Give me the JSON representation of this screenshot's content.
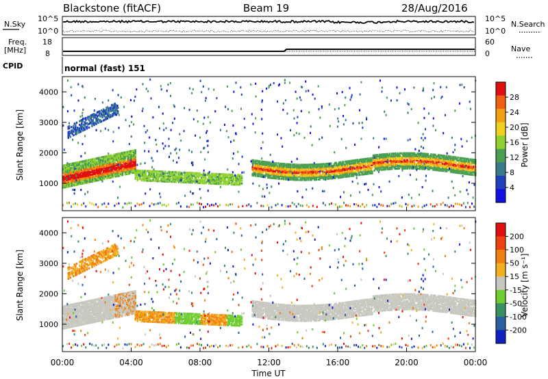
{
  "header": {
    "station": "Blackstone (fitACF)",
    "beam": "Beam 19",
    "date": "28/Aug/2016"
  },
  "summary": {
    "nsky_label": "N.Sky",
    "nsearch_label": "N.Search",
    "noise_ticks": [
      "10^5",
      "10^0"
    ],
    "freq_label_1": "Freq.",
    "freq_label_2": "[MHz]",
    "freq_ticks": [
      "18",
      "8"
    ],
    "nave_label": "Nave",
    "nave_ticks": [
      "60",
      "0"
    ],
    "cpid_label": "CPID",
    "cpid_value": "normal (fast) 151"
  },
  "chart_data": [
    {
      "type": "heatmap",
      "name": "power-panel",
      "ylabel": "Slant Range [km]",
      "xlabel": "",
      "x_ticks": [
        "00:00",
        "04:00",
        "08:00",
        "12:00",
        "16:00",
        "20:00",
        "00:00"
      ],
      "y_ticks": [
        1000,
        2000,
        3000,
        4000
      ],
      "ylim": [
        100,
        4500
      ],
      "xlim_hours": [
        0,
        24
      ],
      "colorbar": {
        "label": "Power [dB]",
        "ticks": [
          4,
          8,
          12,
          16,
          20,
          24,
          28
        ],
        "colors": [
          "#1010e0",
          "#2040c0",
          "#3a7a8a",
          "#4aa050",
          "#90d030",
          "#f0d020",
          "#f0a010",
          "#f06010",
          "#e01010"
        ]
      },
      "features": [
        {
          "region": "main band 00-04h",
          "range_km": [
            1000,
            1700
          ],
          "peak_power_db": 28
        },
        {
          "region": "band 04-10.5h",
          "range_km": [
            1000,
            1500
          ],
          "peak_power_db": 16
        },
        {
          "region": "band 11-24h",
          "range_km": [
            1200,
            1800
          ],
          "peak_power_db": 26
        },
        {
          "region": "high-range streak 00-03h",
          "range_km": [
            2500,
            3500
          ],
          "peak_power_db": 10
        }
      ]
    },
    {
      "type": "heatmap",
      "name": "velocity-panel",
      "ylabel": "Slant Range [km]",
      "xlabel": "Time UT",
      "x_ticks": [
        "00:00",
        "04:00",
        "08:00",
        "12:00",
        "16:00",
        "20:00",
        "00:00"
      ],
      "y_ticks": [
        1000,
        2000,
        3000,
        4000
      ],
      "ylim": [
        100,
        4500
      ],
      "xlim_hours": [
        0,
        24
      ],
      "colorbar": {
        "label": "Velocity [m s⁻¹]",
        "ticks": [
          "200",
          "100",
          "50",
          "15",
          "-15",
          "-50",
          "-100",
          "-200"
        ],
        "colors": [
          "#1020c0",
          "#2a60a0",
          "#3a9060",
          "#70cc30",
          "#c8c8c0",
          "#f0b020",
          "#f08010",
          "#f04010",
          "#e01010"
        ]
      },
      "features": [
        {
          "region": "ground scatter 00-04h",
          "range_km": [
            1000,
            1700
          ],
          "velocity": "±15"
        },
        {
          "region": "band 04-10.5h",
          "range_km": [
            1000,
            1500
          ],
          "velocity": "-50 to 50"
        },
        {
          "region": "ground scatter 11-24h",
          "range_km": [
            1200,
            1800
          ],
          "velocity": "±15"
        }
      ]
    }
  ]
}
